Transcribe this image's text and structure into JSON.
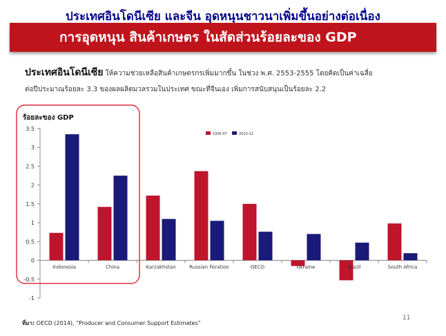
{
  "slide": {
    "top_title": "ประเทศอินโดนีเซีย และจีน อุดหนุนชาวนาเพิ่มขึ้นอย่างต่อเนื่อง",
    "banner_title": "การอุดหนุน สินค้าเกษตร ในสัดส่วนร้อยละของ GDP",
    "desc_bold": "ประเทศอินโดนีเซีย",
    "desc_line1": " ให้ความช่วยเหลือสินค้าเกษตรกรเพิ่มมากขึ้น ในช่วง พ.ศ. 2553-2555 โดยคิดเป็นค่าเฉลี่ย",
    "desc_line2": "ต่อปีประมาณร้อยละ 3.3 ของผลผลิตมวลรวมในประเทศ ขณะที่จีนเอง เพิ่มการสนับสนุนเป็นร้อยละ 2.2",
    "source_label": "ที่มา:",
    "source_text": " OECD (2014), “Producer and Consumer Support Estimates”",
    "page_number": "11"
  },
  "chart_data": {
    "type": "bar",
    "ylabel": "ร้อยละของ GDP",
    "xlabel": "",
    "ylim": [
      -1,
      3.5
    ],
    "yticks": [
      -1,
      -0.5,
      0,
      0.5,
      1,
      1.5,
      2,
      2.5,
      3,
      3.5
    ],
    "ytick_labels": [
      "-1",
      "-0.5",
      "0",
      "0.5",
      "1",
      "1.5",
      "2",
      "2.5",
      "3",
      "3.5"
    ],
    "categories": [
      "Indonesia",
      "China",
      "Karzakhstan",
      "Russian Feration",
      "OECD",
      "Ukraine",
      "Brazil",
      "South Africa"
    ],
    "series": [
      {
        "name": "1995-97",
        "color": "#c0142c",
        "values": [
          0.73,
          1.42,
          1.72,
          2.37,
          1.5,
          -0.15,
          -0.53,
          0.98
        ]
      },
      {
        "name": "2010-12",
        "color": "#1a1a7a",
        "values": [
          3.35,
          2.25,
          1.1,
          1.05,
          0.76,
          0.7,
          0.47,
          0.19
        ]
      }
    ],
    "legend_position": "top-right",
    "grid": false,
    "highlight_box_categories": [
      "Indonesia",
      "China"
    ],
    "highlight_color": "#e03040"
  }
}
